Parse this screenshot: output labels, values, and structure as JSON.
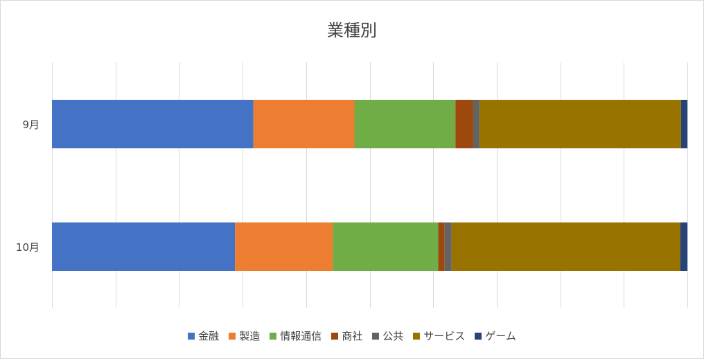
{
  "chart_data": {
    "type": "bar",
    "orientation": "horizontal",
    "stacked": "percent",
    "title": "業種別",
    "categories": [
      "9月",
      "10月"
    ],
    "series": [
      {
        "name": "金融",
        "color": "#4472C4",
        "values": [
          31.7,
          28.8
        ]
      },
      {
        "name": "製造",
        "color": "#ED7D31",
        "values": [
          15.9,
          15.4
        ]
      },
      {
        "name": "情報通信",
        "color": "#70AD47",
        "values": [
          15.9,
          16.6
        ]
      },
      {
        "name": "商社",
        "color": "#9E480E",
        "values": [
          2.8,
          1.0
        ]
      },
      {
        "name": "公共",
        "color": "#636363",
        "values": [
          1.0,
          1.1
        ]
      },
      {
        "name": "サービス",
        "color": "#997300",
        "values": [
          31.7,
          36.0
        ]
      },
      {
        "name": "ゲーム",
        "color": "#264478",
        "values": [
          1.0,
          1.1
        ]
      }
    ],
    "xlim": [
      0,
      100
    ],
    "grid": true,
    "legend_position": "bottom"
  }
}
